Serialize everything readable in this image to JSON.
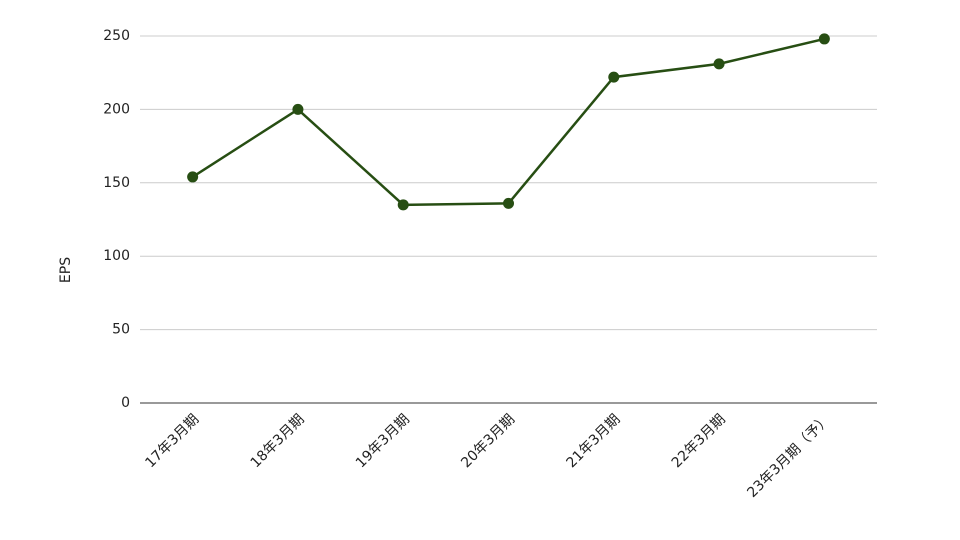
{
  "chart_data": {
    "type": "line",
    "y_label": "EPS",
    "categories": [
      "17年3月期",
      "18年3月期",
      "19年3月期",
      "20年3月期",
      "21年3月期",
      "22年3月期",
      "23年3月期（予）"
    ],
    "series": [
      {
        "name": "EPS",
        "color": "#274e13",
        "values": [
          154,
          200,
          135,
          136,
          222,
          231,
          248
        ]
      }
    ],
    "ylim": [
      0,
      250
    ],
    "yticks": [
      0,
      50,
      100,
      150,
      200,
      250
    ],
    "grid": true
  }
}
